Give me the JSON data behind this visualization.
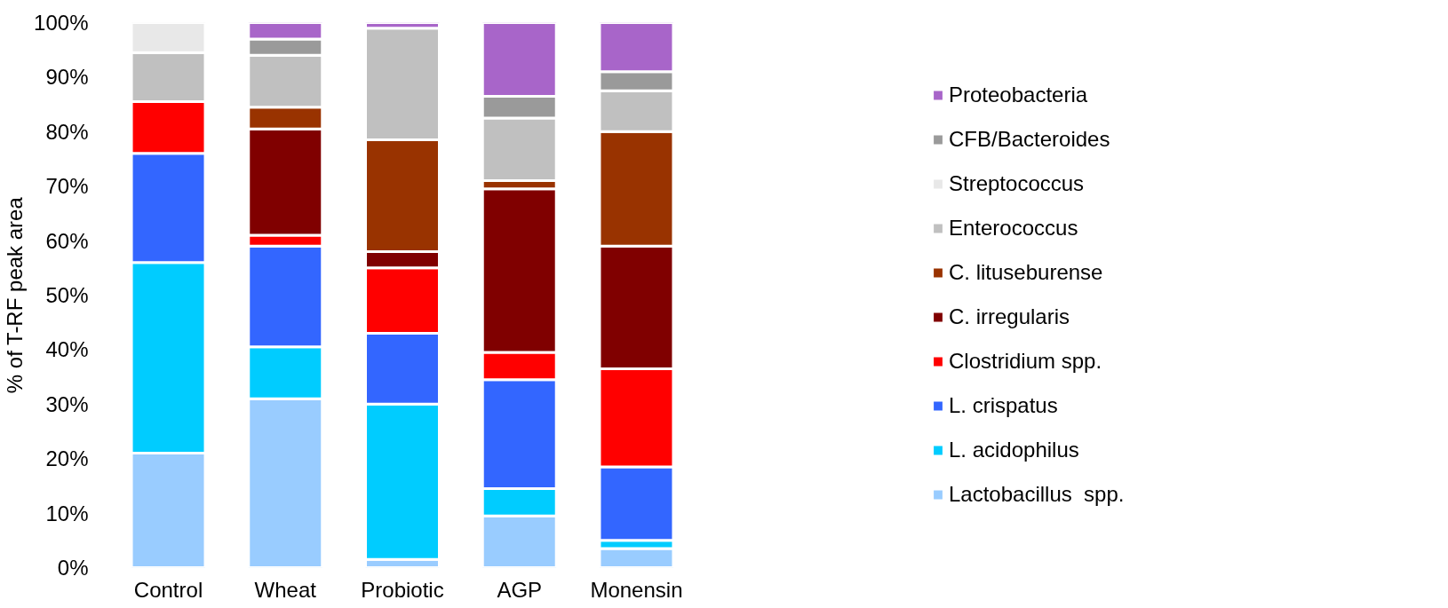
{
  "chart_data": {
    "type": "bar",
    "stacked": true,
    "ylabel": "% of T-RF peak area",
    "categories": [
      "Control",
      "Wheat",
      "Probiotic",
      "AGP",
      "Monensin"
    ],
    "series": [
      {
        "name": "Lactobacillus  spp.",
        "color": "#99ccff",
        "values": [
          21,
          31,
          1.5,
          9.5,
          3.5
        ]
      },
      {
        "name": "L. acidophilus",
        "color": "#00ccff",
        "values": [
          35,
          9.5,
          28.5,
          5,
          1.5
        ]
      },
      {
        "name": "L. crispatus",
        "color": "#3366ff",
        "values": [
          20,
          18.5,
          13,
          20,
          13.5
        ]
      },
      {
        "name": "Clostridium spp.",
        "color": "#ff0000",
        "values": [
          9.5,
          2,
          12,
          5,
          18
        ]
      },
      {
        "name": "C. irregularis",
        "color": "#800000",
        "values": [
          0,
          19.5,
          3,
          30,
          22.5
        ]
      },
      {
        "name": "C. lituseburense",
        "color": "#993300",
        "values": [
          0,
          4,
          20.5,
          1.5,
          21
        ]
      },
      {
        "name": "Enterococcus",
        "color": "#c0c0c0",
        "values": [
          9,
          9.5,
          20.5,
          11.5,
          7.5
        ]
      },
      {
        "name": "Streptococcus",
        "color": "#e8e8e8",
        "values": [
          5.5,
          0,
          0,
          0,
          0
        ]
      },
      {
        "name": "CFB/Bacteroides",
        "color": "#9a9a9a",
        "values": [
          0,
          3,
          0,
          4,
          3.5
        ]
      },
      {
        "name": "Proteobacteria",
        "color": "#a865c9",
        "values": [
          0,
          3,
          1,
          13.5,
          9
        ]
      }
    ],
    "ylim": [
      0,
      100
    ],
    "yticks": [
      {
        "value": 0,
        "label": "0%"
      },
      {
        "value": 10,
        "label": "10%"
      },
      {
        "value": 20,
        "label": "20%"
      },
      {
        "value": 30,
        "label": "30%"
      },
      {
        "value": 40,
        "label": "40%"
      },
      {
        "value": 50,
        "label": "50%"
      },
      {
        "value": 60,
        "label": "60%"
      },
      {
        "value": 70,
        "label": "70%"
      },
      {
        "value": 80,
        "label": "80%"
      },
      {
        "value": 90,
        "label": "90%"
      },
      {
        "value": 100,
        "label": "100%"
      }
    ],
    "grid": false,
    "legend": "right"
  }
}
